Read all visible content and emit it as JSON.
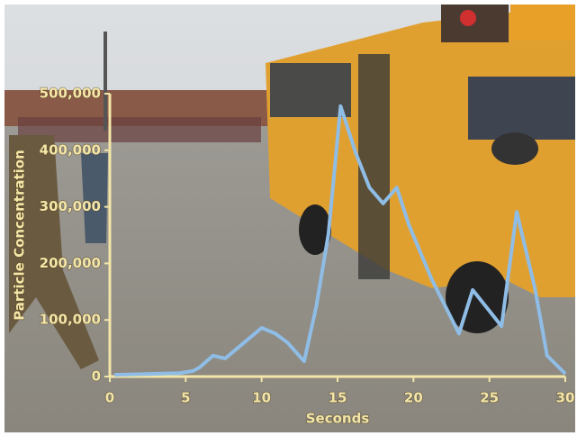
{
  "chart_data": {
    "type": "line",
    "x_label": "Seconds",
    "y_label": "Particle Concentration",
    "x": [
      0.3,
      4.6,
      5.5,
      5.9,
      6.8,
      7.6,
      10,
      10.9,
      11.7,
      12.8,
      13.6,
      14.4,
      15.2,
      16.2,
      17.1,
      18,
      18.9,
      19.7,
      21.2,
      23,
      23.9,
      25,
      25.8,
      26.8,
      28,
      28.8,
      30
    ],
    "values": [
      3000,
      6000,
      10000,
      16000,
      37000,
      32000,
      86000,
      76000,
      60000,
      27000,
      124000,
      252000,
      478000,
      395000,
      334000,
      306000,
      334000,
      268000,
      172000,
      76000,
      153000,
      116000,
      89000,
      291000,
      156000,
      37000,
      5000
    ],
    "color": "#8fbde6",
    "xlim": [
      0,
      30
    ],
    "xticks": [
      0,
      5,
      10,
      15,
      20,
      25,
      30
    ],
    "ylim": [
      0,
      500000
    ],
    "yticks": [
      0,
      {
        "value": 100000,
        "label": "100,000"
      },
      {
        "value": 200000,
        "label": "200,000"
      },
      {
        "value": 300000,
        "label": "300,000"
      },
      {
        "value": 400000,
        "label": "400,000"
      },
      {
        "value": 500000,
        "label": "500,000"
      }
    ]
  }
}
